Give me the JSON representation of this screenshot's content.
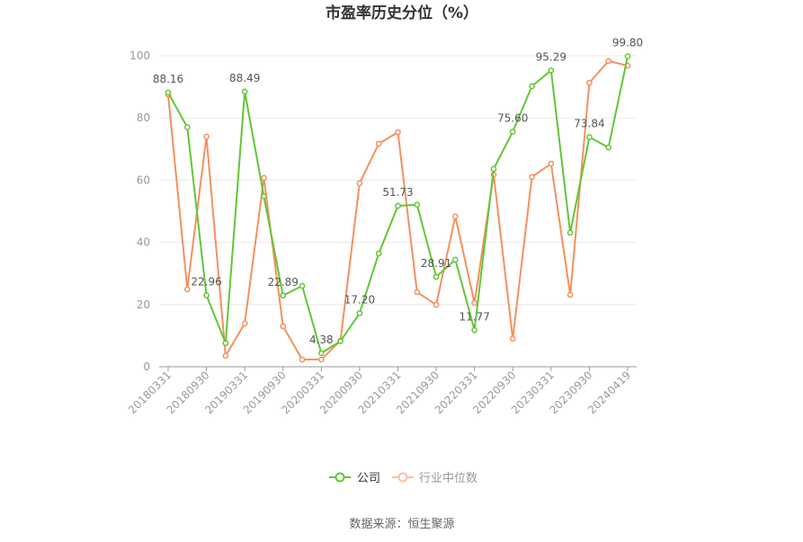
{
  "chart_data": {
    "type": "line",
    "title": "市盈率历史分位（%）",
    "xlabel": "",
    "ylabel": "",
    "ylim": [
      0,
      100
    ],
    "yticks": [
      0,
      20,
      40,
      60,
      80,
      100
    ],
    "grid": true,
    "legend_position": "bottom",
    "x_tick_labels": [
      "20180331",
      "20180930",
      "20190331",
      "20190930",
      "20200331",
      "20200930",
      "20210331",
      "20210930",
      "20220331",
      "20220930",
      "20230331",
      "20230930",
      "20240419"
    ],
    "series": [
      {
        "name": "公司",
        "color": "#62c636",
        "values": [
          88.16,
          77.0,
          22.96,
          7.6,
          88.49,
          54.8,
          22.89,
          26.0,
          4.38,
          8.2,
          17.2,
          36.4,
          51.73,
          52.1,
          28.91,
          34.4,
          11.77,
          63.6,
          75.6,
          90.2,
          95.29,
          43.1,
          73.84,
          70.5,
          99.8
        ],
        "data_labels": [
          "88.16",
          null,
          "22.96",
          null,
          "88.49",
          null,
          "22.89",
          null,
          "4.38",
          null,
          "17.20",
          null,
          "51.73",
          null,
          "28.91",
          null,
          "11.77",
          null,
          "75.60",
          null,
          "95.29",
          null,
          "73.84",
          null,
          "99.80"
        ]
      },
      {
        "name": "行业中位数",
        "color": "#f3915e",
        "values": [
          87.5,
          24.9,
          74.0,
          3.5,
          13.9,
          60.7,
          13.0,
          2.3,
          2.3,
          8.4,
          59.0,
          71.7,
          75.4,
          24.0,
          19.9,
          48.3,
          20.5,
          61.8,
          9.0,
          61.0,
          65.3,
          23.1,
          91.3,
          98.3,
          96.8
        ]
      }
    ]
  },
  "source": "数据来源：恒生聚源"
}
